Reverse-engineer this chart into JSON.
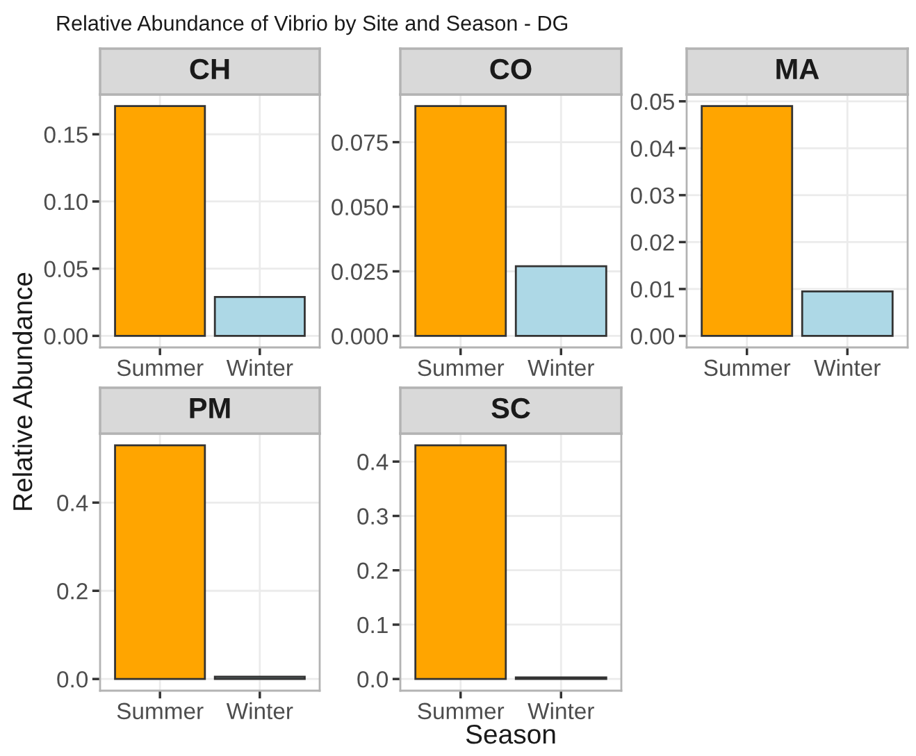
{
  "chart_data": [
    {
      "type": "bar",
      "title": "CH",
      "categories": [
        "Summer",
        "Winter"
      ],
      "values": [
        0.171,
        0.029
      ],
      "colors": [
        "#ffa500",
        "#add8e6"
      ],
      "ylim": [
        -0.0086,
        0.1796
      ],
      "yticks": [
        {
          "value": 0,
          "label": "0.00"
        },
        {
          "value": 0.05,
          "label": "0.05"
        },
        {
          "value": 0.1,
          "label": "0.10"
        },
        {
          "value": 0.15,
          "label": "0.15"
        }
      ],
      "grid": true,
      "legend": false,
      "annotations": [
        "Relative Abundance of Vibrio by Site and Season - DG"
      ],
      "ylabel": "Relative Abundance"
    },
    {
      "type": "bar",
      "title": "CO",
      "categories": [
        "Summer",
        "Winter"
      ],
      "values": [
        0.089,
        0.027
      ],
      "colors": [
        "#ffa500",
        "#add8e6"
      ],
      "ylim": [
        -0.00445,
        0.09345
      ],
      "yticks": [
        {
          "value": 0,
          "label": "0.000"
        },
        {
          "value": 0.025,
          "label": "0.025"
        },
        {
          "value": 0.05,
          "label": "0.050"
        },
        {
          "value": 0.075,
          "label": "0.075"
        }
      ],
      "grid": true,
      "legend": false
    },
    {
      "type": "bar",
      "title": "MA",
      "categories": [
        "Summer",
        "Winter"
      ],
      "values": [
        0.049,
        0.0095
      ],
      "colors": [
        "#ffa500",
        "#add8e6"
      ],
      "ylim": [
        -0.00245,
        0.05145
      ],
      "yticks": [
        {
          "value": 0,
          "label": "0.00"
        },
        {
          "value": 0.01,
          "label": "0.01"
        },
        {
          "value": 0.02,
          "label": "0.02"
        },
        {
          "value": 0.03,
          "label": "0.03"
        },
        {
          "value": 0.04,
          "label": "0.04"
        },
        {
          "value": 0.05,
          "label": "0.05"
        }
      ],
      "grid": true,
      "legend": false
    },
    {
      "type": "bar",
      "title": "PM",
      "categories": [
        "Summer",
        "Winter"
      ],
      "values": [
        0.53,
        0.005
      ],
      "colors": [
        "#ffa500",
        "#add8e6"
      ],
      "ylim": [
        -0.0265,
        0.5565
      ],
      "yticks": [
        {
          "value": 0,
          "label": "0.0"
        },
        {
          "value": 0.2,
          "label": "0.2"
        },
        {
          "value": 0.4,
          "label": "0.4"
        }
      ],
      "grid": true,
      "legend": false
    },
    {
      "type": "bar",
      "title": "SC",
      "categories": [
        "Summer",
        "Winter"
      ],
      "values": [
        0.43,
        0.003
      ],
      "colors": [
        "#ffa500",
        "#add8e6"
      ],
      "ylim": [
        -0.0215,
        0.4515
      ],
      "yticks": [
        {
          "value": 0,
          "label": "0.0"
        },
        {
          "value": 0.1,
          "label": "0.1"
        },
        {
          "value": 0.2,
          "label": "0.2"
        },
        {
          "value": 0.3,
          "label": "0.3"
        },
        {
          "value": 0.4,
          "label": "0.4"
        }
      ],
      "grid": true,
      "legend": false,
      "xlabel": "Season"
    }
  ]
}
